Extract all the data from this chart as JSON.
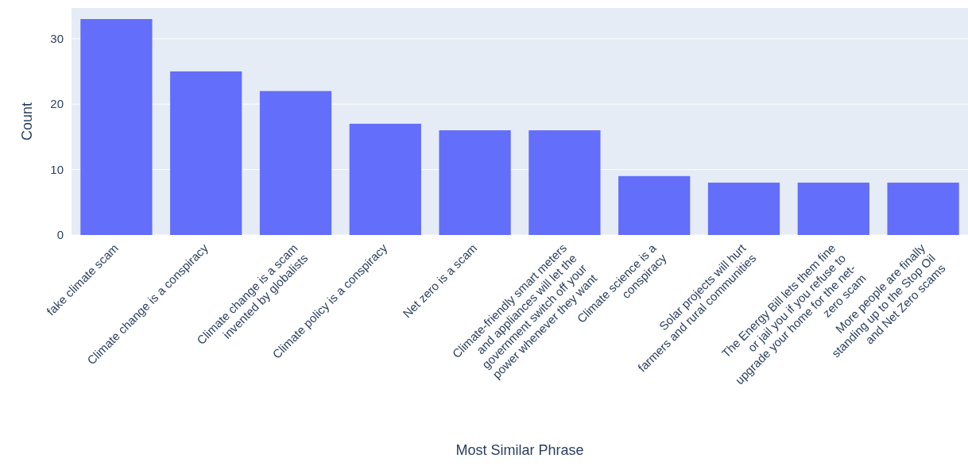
{
  "chart_data": {
    "type": "bar",
    "xlabel": "Most Similar Phrase",
    "ylabel": "Count",
    "categories": [
      "fake climate scam",
      "Climate change is a conspiracy",
      "Climate change is a scam\ninvented by globalists",
      "Climate policy is a conspiracy",
      "Net zero is a scam",
      "Climate-friendly smart meters\nand appliances will let the\ngovernment switch off your\npower whenever they want",
      "Climate science is a\nconspiracy",
      "Solar projects will hurt\nfarmers and rural communities",
      "The Energy Bill lets them fine\nor jail you if you refuse to\nupgrade your home for the net-\nzero scam",
      "More people are finally\nstanding up to the Stop Oil\nand Net Zero scams"
    ],
    "values": [
      33,
      25,
      22,
      17,
      16,
      16,
      9,
      8,
      8,
      8
    ],
    "color": "#636efa",
    "ylim": [
      0,
      34.7
    ],
    "yticks": [
      0,
      10,
      20,
      30
    ],
    "grid": "y"
  }
}
